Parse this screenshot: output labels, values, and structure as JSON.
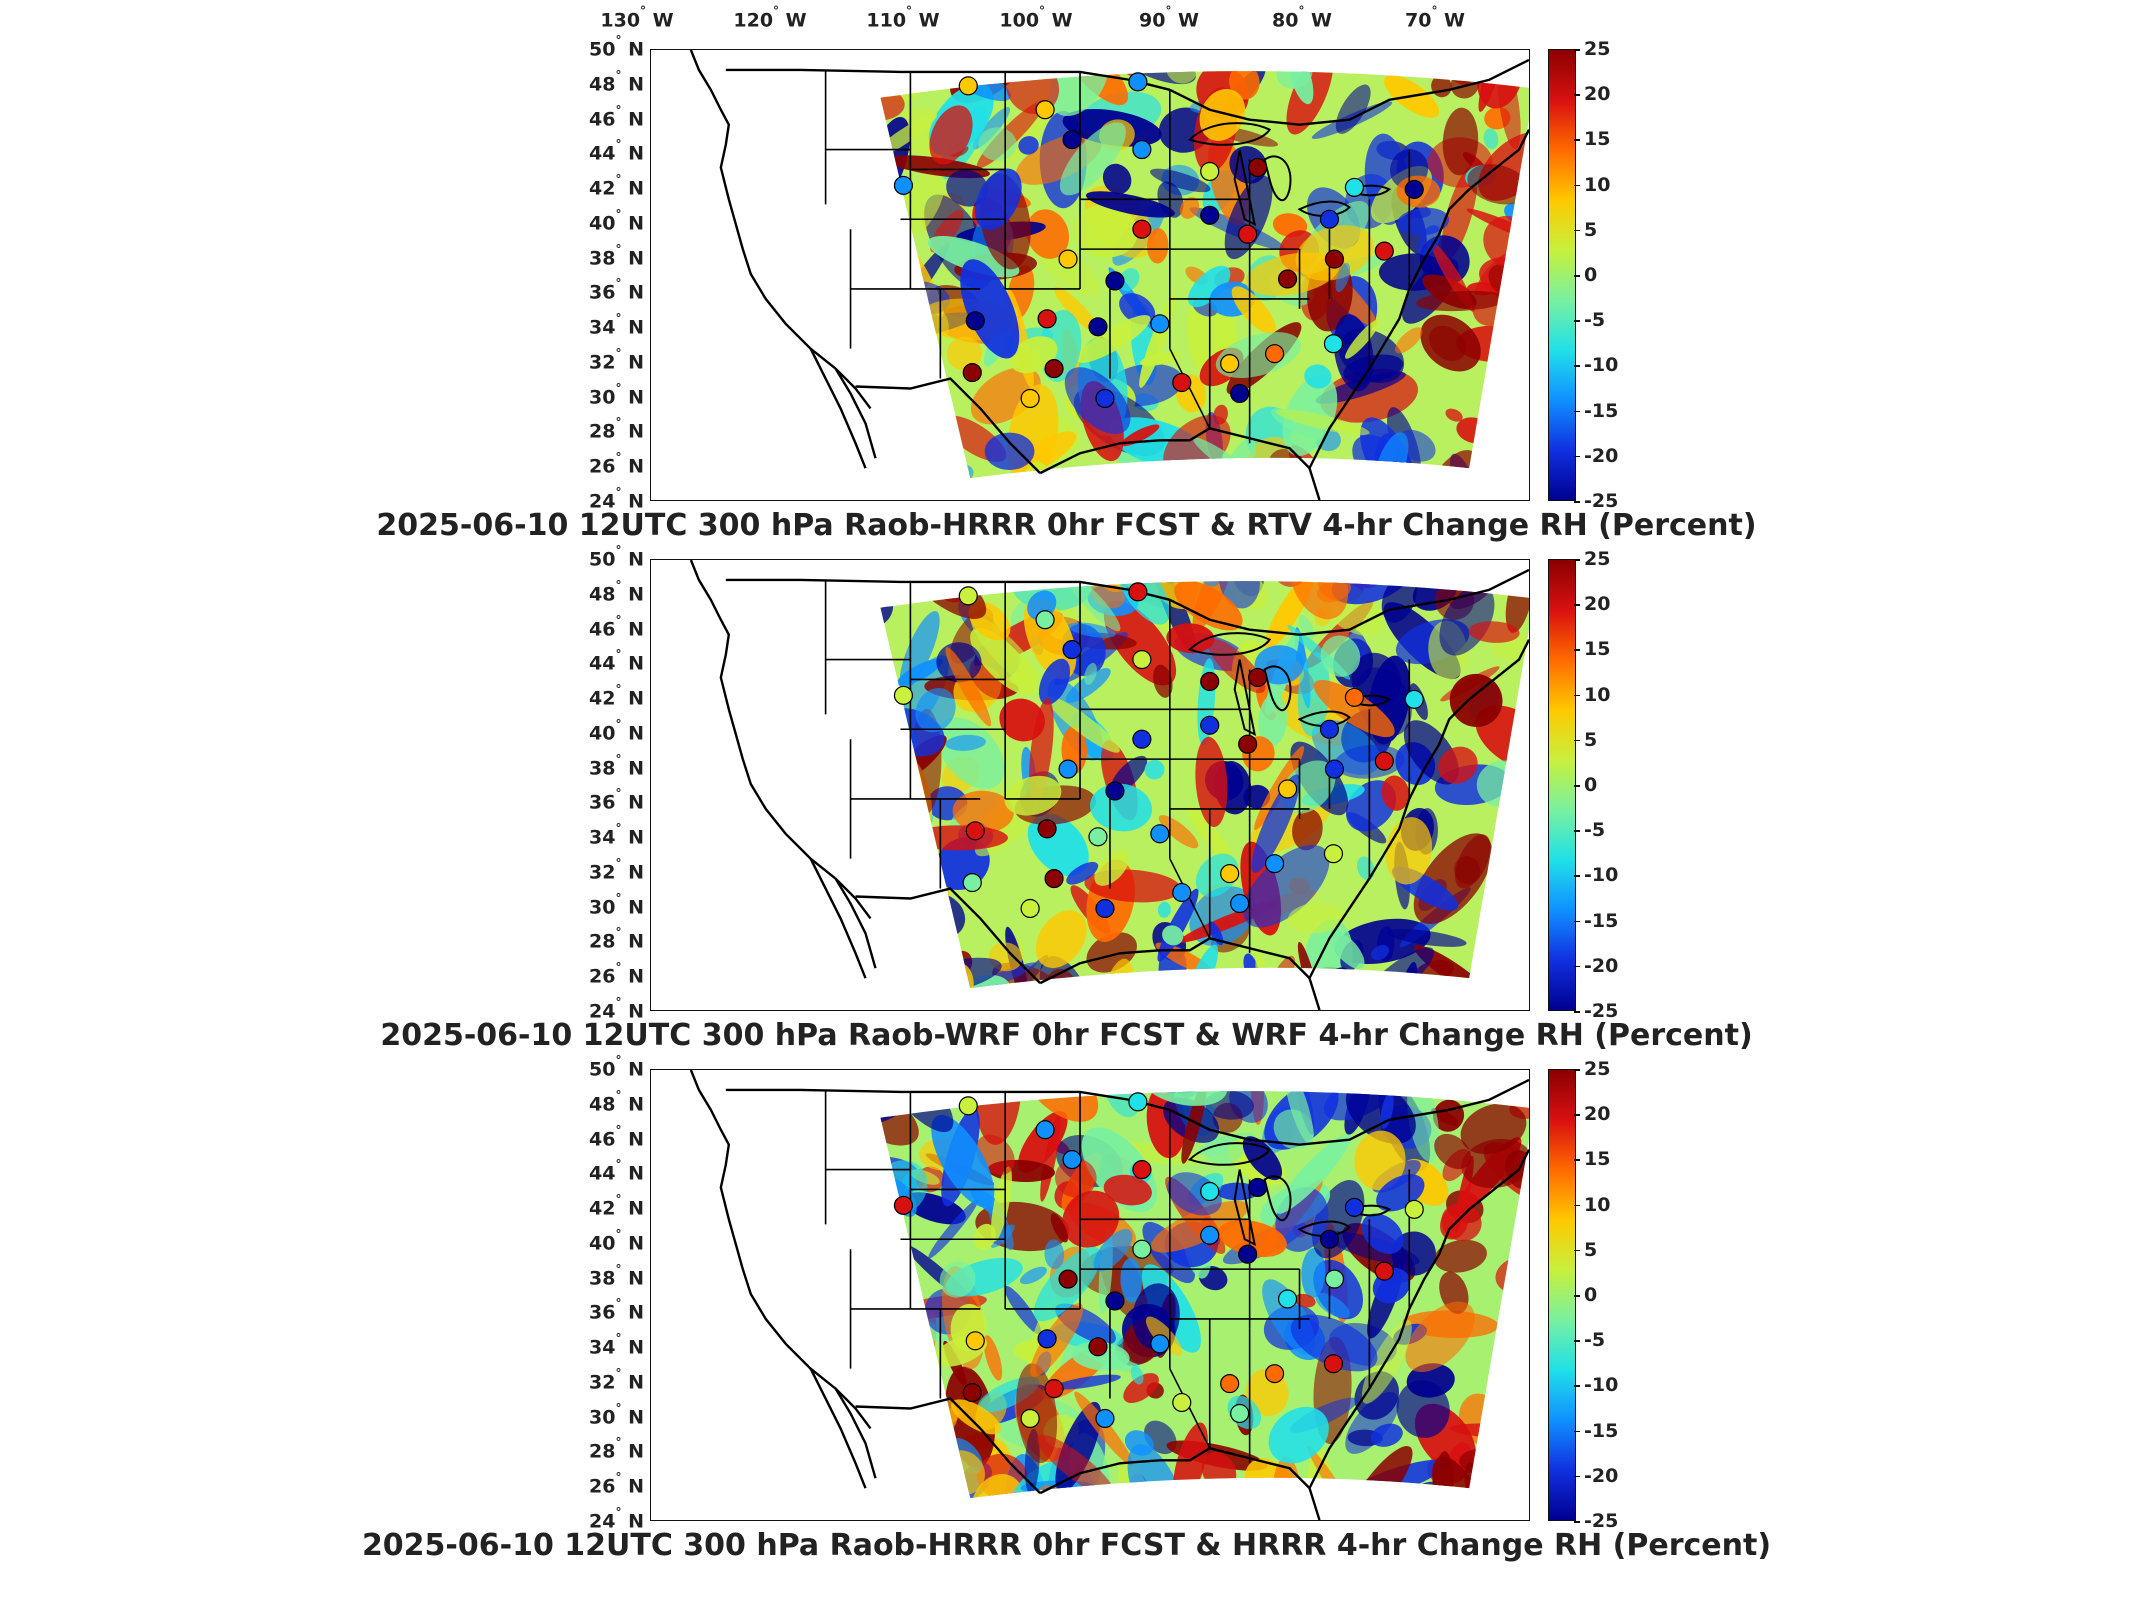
{
  "longitude_labels": [
    {
      "deg": "130",
      "dir": "W"
    },
    {
      "deg": "120",
      "dir": "W"
    },
    {
      "deg": "110",
      "dir": "W"
    },
    {
      "deg": "100",
      "dir": "W"
    },
    {
      "deg": "90",
      "dir": "W"
    },
    {
      "deg": "80",
      "dir": "W"
    },
    {
      "deg": "70",
      "dir": "W"
    }
  ],
  "latitude_labels": [
    {
      "deg": "50",
      "dir": "N"
    },
    {
      "deg": "48",
      "dir": "N"
    },
    {
      "deg": "46",
      "dir": "N"
    },
    {
      "deg": "44",
      "dir": "N"
    },
    {
      "deg": "42",
      "dir": "N"
    },
    {
      "deg": "40",
      "dir": "N"
    },
    {
      "deg": "38",
      "dir": "N"
    },
    {
      "deg": "36",
      "dir": "N"
    },
    {
      "deg": "34",
      "dir": "N"
    },
    {
      "deg": "32",
      "dir": "N"
    },
    {
      "deg": "30",
      "dir": "N"
    },
    {
      "deg": "28",
      "dir": "N"
    },
    {
      "deg": "26",
      "dir": "N"
    },
    {
      "deg": "24",
      "dir": "N"
    }
  ],
  "colorbar": {
    "ticks": [
      "25",
      "20",
      "15",
      "10",
      "5",
      "0",
      "-5",
      "-10",
      "-15",
      "-20",
      "-25"
    ],
    "colors": [
      "#8b0000",
      "#d81010",
      "#ff6a00",
      "#ffc800",
      "#c8f03c",
      "#78f0a0",
      "#20e0e8",
      "#1090ff",
      "#1030e0",
      "#000090"
    ]
  },
  "panels": [
    {
      "id": "rtv",
      "title": "2025-06-10 12UTC 300 hPa Raob-HRRR 0hr FCST & RTV 4-hr Change RH (Percent)"
    },
    {
      "id": "wrf",
      "title": "2025-06-10 12UTC 300 hPa Raob-WRF 0hr FCST & WRF 4-hr Change RH (Percent)"
    },
    {
      "id": "hrrr",
      "title": "2025-06-10 12UTC 300 hPa Raob-HRRR 0hr FCST & HRRR 4-hr Change RH (Percent)"
    }
  ]
}
